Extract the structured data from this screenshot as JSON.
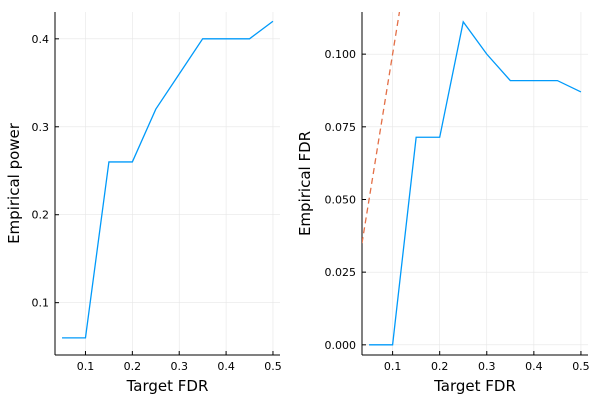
{
  "chart_data": [
    {
      "type": "line",
      "xlabel": "Target FDR",
      "ylabel": "Empirical power",
      "xlim": [
        0.035,
        0.515
      ],
      "ylim": [
        0.0405,
        0.4305
      ],
      "xticks": [
        0.1,
        0.2,
        0.3,
        0.4,
        0.5
      ],
      "xtick_labels": [
        "0.1",
        "0.2",
        "0.3",
        "0.4",
        "0.5"
      ],
      "yticks": [
        0.1,
        0.2,
        0.3,
        0.4
      ],
      "ytick_labels": [
        "0.1",
        "0.2",
        "0.3",
        "0.4"
      ],
      "grid": true,
      "legend": "none",
      "series": [
        {
          "color": "#009AFA",
          "dash": "solid",
          "x": [
            0.05,
            0.1,
            0.15,
            0.2,
            0.25,
            0.3,
            0.35,
            0.4,
            0.45,
            0.5
          ],
          "y": [
            0.06,
            0.06,
            0.26,
            0.26,
            0.32,
            0.36,
            0.4,
            0.4,
            0.4,
            0.42
          ]
        }
      ]
    },
    {
      "type": "line",
      "xlabel": "Target FDR",
      "ylabel": "Empirical FDR",
      "xlim": [
        0.035,
        0.515
      ],
      "ylim": [
        -0.0035,
        0.1145
      ],
      "xticks": [
        0.1,
        0.2,
        0.3,
        0.4,
        0.5
      ],
      "xtick_labels": [
        "0.1",
        "0.2",
        "0.3",
        "0.4",
        "0.5"
      ],
      "yticks": [
        0.0,
        0.025,
        0.05,
        0.075,
        0.1
      ],
      "ytick_labels": [
        "0.000",
        "0.025",
        "0.050",
        "0.075",
        "0.100"
      ],
      "grid": true,
      "legend": "none",
      "series": [
        {
          "color": "#009AFA",
          "dash": "solid",
          "x": [
            0.05,
            0.1,
            0.15,
            0.2,
            0.25,
            0.3,
            0.35,
            0.4,
            0.45,
            0.5
          ],
          "y": [
            0.0,
            0.0,
            0.0714,
            0.0714,
            0.1111,
            0.1,
            0.0909,
            0.0909,
            0.0909,
            0.087
          ]
        },
        {
          "color": "#E36F47",
          "dash": "dashed",
          "x": [
            0.035,
            0.1145
          ],
          "y": [
            0.035,
            0.1145
          ]
        }
      ]
    }
  ]
}
